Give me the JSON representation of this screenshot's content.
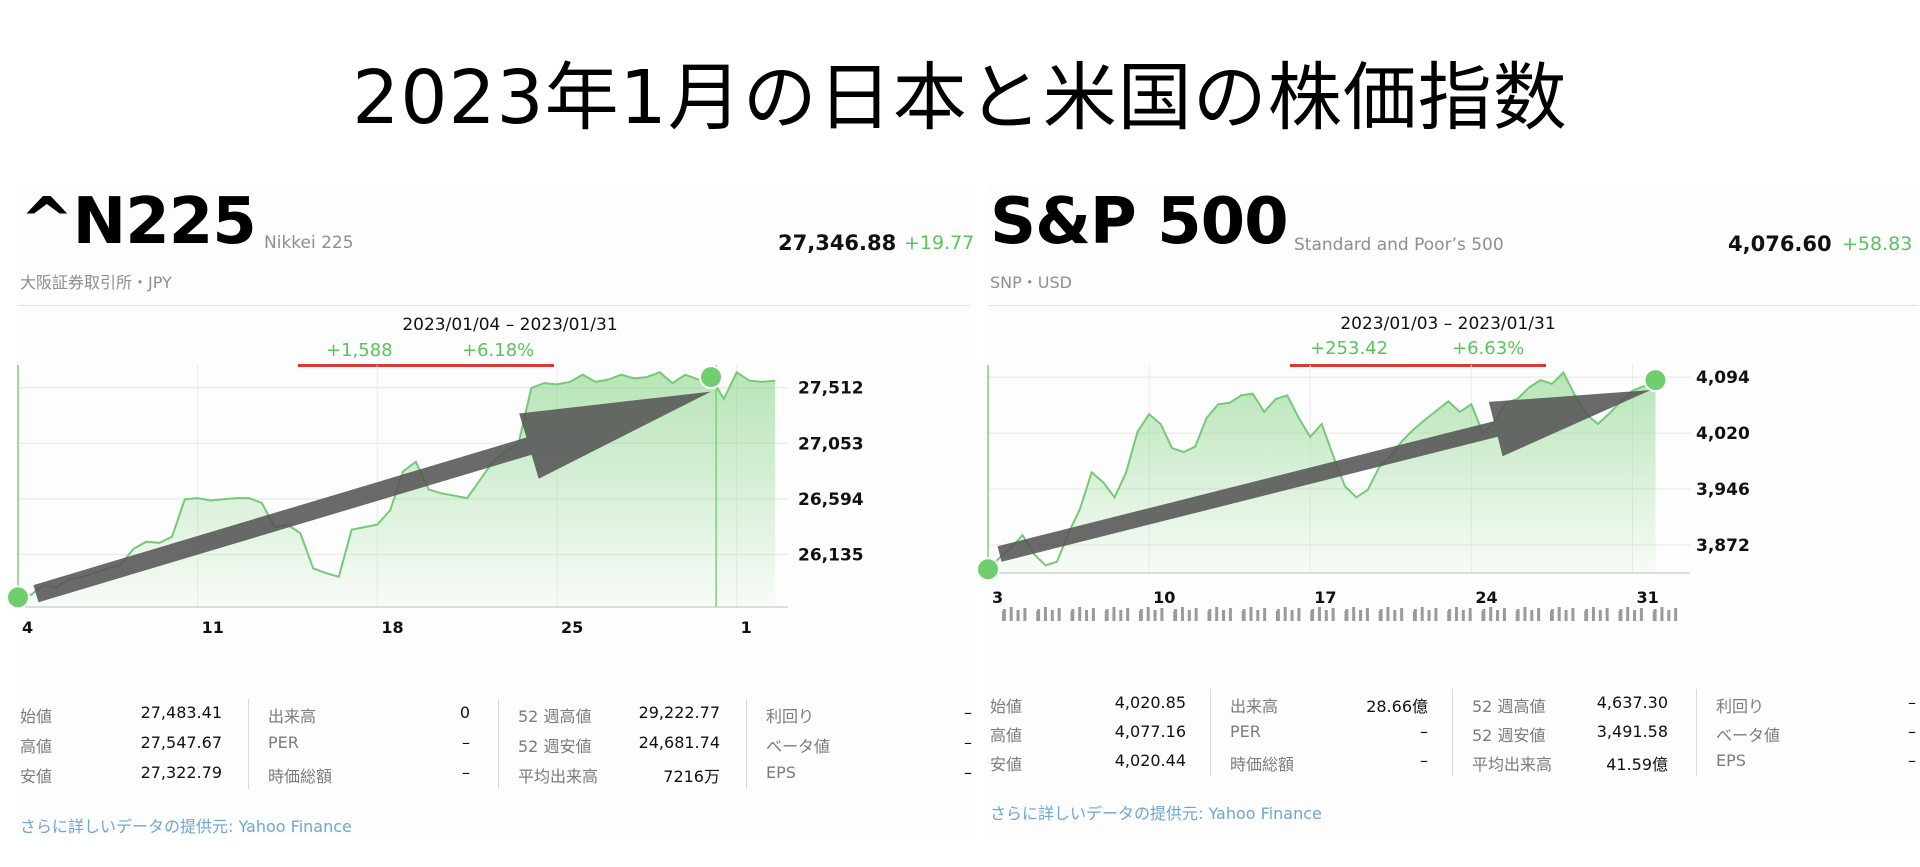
{
  "title": "2023年1月の日本と米国の株価指数",
  "panels": [
    {
      "ticker": "^N225",
      "name": "Nikkei 225",
      "exchange": "大阪証券取引所・JPY",
      "price": "27,346.88",
      "change": "+19.77",
      "range": "2023/01/04 – 2023/01/31",
      "range_change": "+1,588",
      "range_pct": "+6.18%",
      "stats": [
        {
          "label": "始値",
          "value": "27,483.41"
        },
        {
          "label": "高値",
          "value": "27,547.67"
        },
        {
          "label": "安値",
          "value": "27,322.79"
        },
        {
          "label": "出来高",
          "value": "0"
        },
        {
          "label": "PER",
          "value": "–"
        },
        {
          "label": "時価総額",
          "value": "–"
        },
        {
          "label": "52 週高値",
          "value": "29,222.77"
        },
        {
          "label": "52 週安値",
          "value": "24,681.74"
        },
        {
          "label": "平均出来高",
          "value": "7216万"
        },
        {
          "label": "利回り",
          "value": "–"
        },
        {
          "label": "ベータ値",
          "value": "–"
        },
        {
          "label": "EPS",
          "value": "–"
        }
      ],
      "source": "さらに詳しいデータの提供元: Yahoo Finance"
    },
    {
      "ticker": "S&P 500",
      "name": "Standard and Poor’s 500",
      "exchange": "SNP・USD",
      "price": "4,076.60",
      "change": "+58.83",
      "range": "2023/01/03 – 2023/01/31",
      "range_change": "+253.42",
      "range_pct": "+6.63%",
      "stats": [
        {
          "label": "始値",
          "value": "4,020.85"
        },
        {
          "label": "高値",
          "value": "4,077.16"
        },
        {
          "label": "安値",
          "value": "4,020.44"
        },
        {
          "label": "出来高",
          "value": "28.66億"
        },
        {
          "label": "PER",
          "value": "–"
        },
        {
          "label": "時価総額",
          "value": "–"
        },
        {
          "label": "52 週高値",
          "value": "4,637.30"
        },
        {
          "label": "52 週安値",
          "value": "3,491.58"
        },
        {
          "label": "平均出来高",
          "value": "41.59億"
        },
        {
          "label": "利回り",
          "value": "–"
        },
        {
          "label": "ベータ値",
          "value": "–"
        },
        {
          "label": "EPS",
          "value": "–"
        }
      ],
      "source": "さらに詳しいデータの提供元: Yahoo Finance"
    }
  ],
  "colors": {
    "up": "#5cc25c",
    "line": "#76c976",
    "arrow": "#555555",
    "underline": "#d93a35",
    "link": "#6aa7d8"
  },
  "chart_data": [
    {
      "type": "line",
      "x_ticks": [
        "4",
        "11",
        "18",
        "25",
        "1"
      ],
      "x_tick_days": [
        4,
        11,
        18,
        25,
        32
      ],
      "xlim": [
        4,
        34
      ],
      "y_ticks": [
        "27,512",
        "27,053",
        "26,594",
        "26,135"
      ],
      "y_tick_values": [
        27512,
        27053,
        26594,
        26135
      ],
      "ylim": [
        25700,
        27700
      ],
      "series": [
        {
          "x": [
            4,
            4.5,
            5,
            5.5,
            6,
            6.5,
            7,
            7.5,
            8,
            8.5,
            9,
            9.5,
            10,
            10.5,
            11,
            11.5,
            12,
            12.5,
            13,
            13.5,
            14,
            14.5,
            15,
            15.5,
            16,
            16.5,
            17,
            17.5,
            18,
            18.5,
            19,
            19.5,
            20,
            20.5,
            21,
            21.5,
            22,
            22.5,
            23,
            23.5,
            24,
            24.5,
            25,
            25.5,
            26,
            26.5,
            27,
            27.5,
            28,
            28.5,
            29,
            29.5,
            30,
            30.5,
            31,
            31.5,
            32,
            32.5,
            33,
            33.5
          ],
          "y": [
            25780,
            25800,
            25880,
            25860,
            25930,
            25950,
            25980,
            26020,
            26050,
            26180,
            26240,
            26230,
            26280,
            26590,
            26600,
            26580,
            26590,
            26600,
            26600,
            26560,
            26360,
            26380,
            26310,
            26020,
            25980,
            25950,
            26340,
            26360,
            26380,
            26500,
            26820,
            26900,
            26670,
            26640,
            26620,
            26600,
            26750,
            26900,
            26990,
            27050,
            27510,
            27550,
            27540,
            27560,
            27620,
            27560,
            27580,
            27620,
            27590,
            27600,
            27640,
            27550,
            27620,
            27580,
            27600,
            27420,
            27640,
            27570,
            27560,
            27570
          ]
        }
      ],
      "end_marker_x": 31,
      "divider_x": 31.2,
      "trend_arrow": {
        "from": [
          4.7,
          25810
        ],
        "to": [
          31,
          27480
        ]
      },
      "range_change": "+1,588",
      "range_pct": "+6.18%"
    },
    {
      "type": "line",
      "x_ticks": [
        "3",
        "10",
        "17",
        "24",
        "31"
      ],
      "x_tick_days": [
        3,
        10,
        17,
        24,
        31
      ],
      "xlim": [
        3,
        33.5
      ],
      "y_ticks": [
        "4,094",
        "4,020",
        "3,946",
        "3,872"
      ],
      "y_tick_values": [
        4094,
        4020,
        3946,
        3872
      ],
      "ylim": [
        3835,
        4110
      ],
      "series": [
        {
          "x": [
            3,
            3.5,
            4,
            4.5,
            5,
            5.5,
            6,
            6.5,
            7,
            7.5,
            8,
            8.5,
            9,
            9.5,
            10,
            10.5,
            11,
            11.5,
            12,
            12.5,
            13,
            13.5,
            14,
            14.5,
            15,
            15.5,
            16,
            16.5,
            17,
            17.5,
            18,
            18.5,
            19,
            19.5,
            20,
            20.5,
            21,
            21.5,
            22,
            22.5,
            23,
            23.5,
            24,
            24.5,
            25,
            25.5,
            26,
            26.5,
            27,
            27.5,
            28,
            28.5,
            29,
            29.5,
            30,
            30.5,
            31,
            31.5,
            32
          ],
          "y": [
            3840,
            3855,
            3868,
            3885,
            3860,
            3845,
            3850,
            3888,
            3920,
            3968,
            3955,
            3935,
            3968,
            4022,
            4045,
            4032,
            4000,
            3995,
            4002,
            4040,
            4058,
            4060,
            4070,
            4072,
            4048,
            4065,
            4070,
            4040,
            4015,
            4032,
            3990,
            3950,
            3935,
            3945,
            3975,
            3990,
            4010,
            4025,
            4038,
            4050,
            4062,
            4048,
            4058,
            4020,
            4035,
            4060,
            4065,
            4080,
            4090,
            4085,
            4100,
            4070,
            4045,
            4032,
            4046,
            4062,
            4076,
            4082,
            4090
          ]
        }
      ],
      "end_marker_x": 32,
      "trend_arrow": {
        "from": [
          3.5,
          3860
        ],
        "to": [
          31.8,
          4077
        ]
      },
      "volume_bars": true,
      "range_change": "+253.42",
      "range_pct": "+6.63%"
    }
  ]
}
